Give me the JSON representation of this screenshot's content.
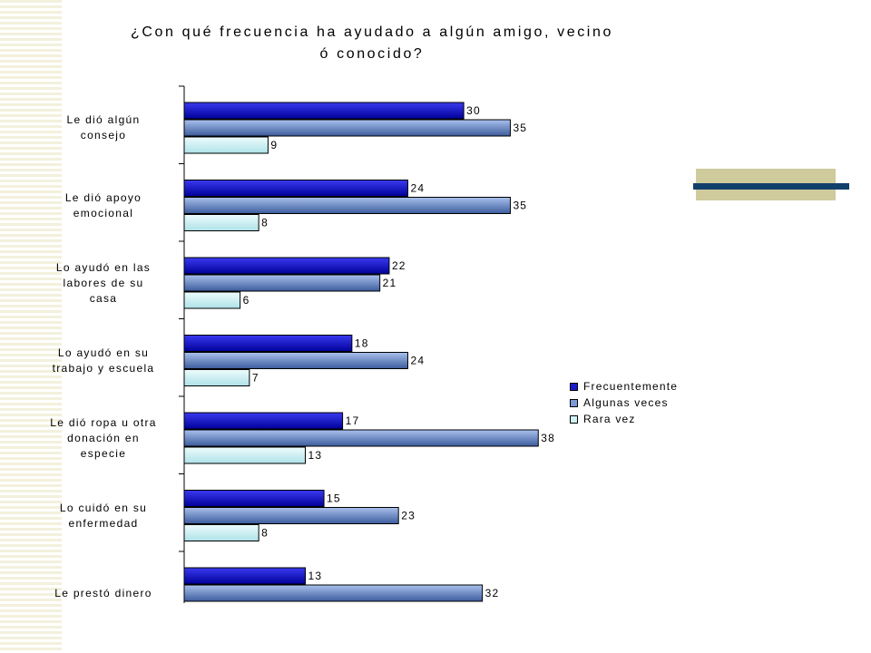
{
  "chart_data": {
    "type": "bar",
    "orientation": "horizontal",
    "title_lines": [
      "¿Con qué frecuencia ha ayudado a algún amigo, vecino",
      "ó conocido?"
    ],
    "categories": [
      [
        "Le dió algún",
        "consejo"
      ],
      [
        "Le dió apoyo",
        "emocional"
      ],
      [
        "Lo ayudó en las",
        "labores de su",
        "casa"
      ],
      [
        "Lo ayudó en su",
        "trabajo y escuela"
      ],
      [
        "Le dió ropa u otra",
        "donación en",
        "especie"
      ],
      [
        "Lo cuidó en su",
        "enfermedad"
      ],
      [
        "Le prestó dinero"
      ]
    ],
    "series": [
      {
        "name": "Frecuentemente",
        "color": "#1a1acc",
        "values": [
          30,
          24,
          22,
          18,
          17,
          15,
          13
        ]
      },
      {
        "name": "Algunas veces",
        "color": "#7a9ad8",
        "values": [
          35,
          35,
          21,
          24,
          38,
          23,
          32
        ]
      },
      {
        "name": "Rara vez",
        "color": "#cff3f6",
        "values": [
          9,
          8,
          6,
          7,
          13,
          8,
          null
        ]
      }
    ],
    "legend_position": "right",
    "xlim": [
      0,
      40
    ],
    "grid": false,
    "data_labels": true
  }
}
